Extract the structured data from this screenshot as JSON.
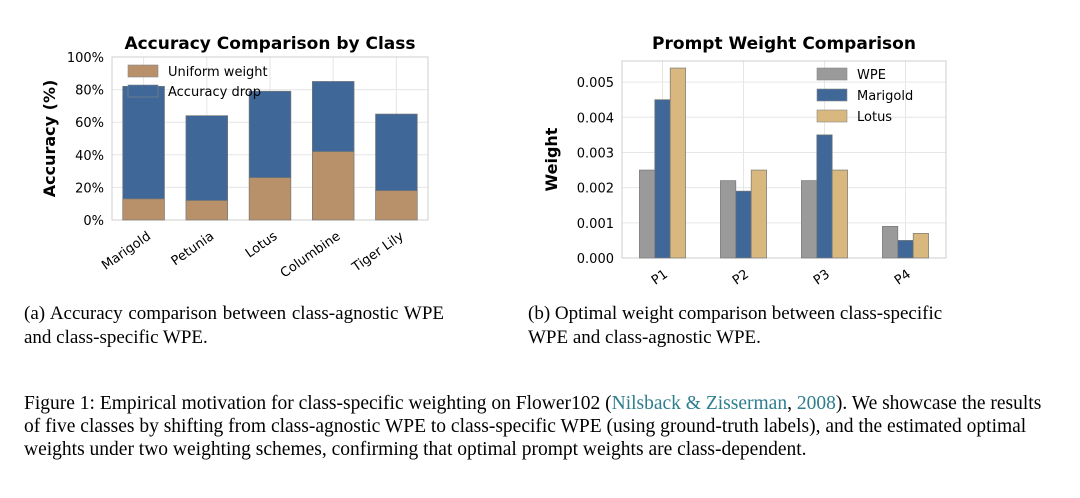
{
  "chart_data": [
    {
      "type": "bar",
      "stacked": true,
      "title": "Accuracy Comparison by Class",
      "xlabel": "",
      "ylabel": "Accuracy (%)",
      "categories": [
        "Marigold",
        "Petunia",
        "Lotus",
        "Columbine",
        "Tiger Lily"
      ],
      "series": [
        {
          "name": "Uniform weight",
          "values": [
            13,
            12,
            26,
            42,
            18
          ],
          "color": "#b8916b"
        },
        {
          "name": "Accuracy drop",
          "values": [
            69,
            52,
            53,
            43,
            47
          ],
          "color": "#3f6797"
        }
      ],
      "ylim": [
        0,
        100
      ],
      "yticks": [
        0,
        20,
        40,
        60,
        80,
        100
      ],
      "ytick_labels": [
        "0%",
        "20%",
        "40%",
        "60%",
        "80%",
        "100%"
      ],
      "legend": "top-left",
      "grid": true
    },
    {
      "type": "bar",
      "stacked": false,
      "title": "Prompt Weight Comparison",
      "xlabel": "",
      "ylabel": "Weight",
      "categories": [
        "P1",
        "P2",
        "P3",
        "P4"
      ],
      "series": [
        {
          "name": "WPE",
          "values": [
            0.0025,
            0.0022,
            0.0022,
            0.0009
          ],
          "color": "#9a9a9a"
        },
        {
          "name": "Marigold",
          "values": [
            0.0045,
            0.0019,
            0.0035,
            0.0005
          ],
          "color": "#3f6797"
        },
        {
          "name": "Lotus",
          "values": [
            0.0054,
            0.0025,
            0.0025,
            0.0007
          ],
          "color": "#d8b87e"
        }
      ],
      "ylim": [
        0,
        0.0056
      ],
      "yticks": [
        0,
        0.001,
        0.002,
        0.003,
        0.004,
        0.005
      ],
      "ytick_labels": [
        "0.000",
        "0.001",
        "0.002",
        "0.003",
        "0.004",
        "0.005"
      ],
      "legend": "top-right",
      "grid": true
    }
  ],
  "captions": {
    "a": "(a) Accuracy comparison between class-agnostic WPE and class-specific WPE.",
    "b": "(b) Optimal weight comparison between class-specific WPE and class-agnostic WPE."
  },
  "figure_caption": {
    "label": "Figure 1:",
    "text_before": "Empirical motivation for class-specific weighting on Flower102 (",
    "citation_authors": "Nilsback & Zisserman",
    "citation_sep": ", ",
    "citation_year": "2008",
    "text_after": "). We showcase the results of five classes by shifting from class-agnostic WPE to class-specific WPE (using ground-truth labels), and the estimated optimal weights under two weighting schemes, confirming that optimal prompt weights are class-dependent."
  }
}
